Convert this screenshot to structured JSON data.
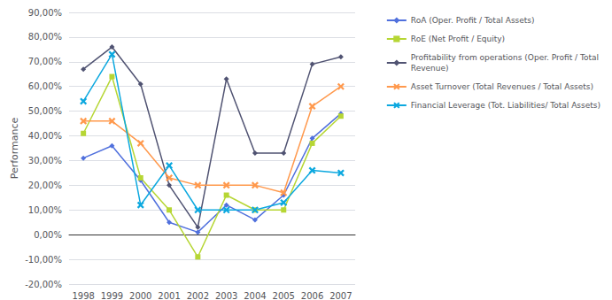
{
  "chart_data": {
    "type": "line",
    "y_label": "Performance",
    "categories": [
      "1998",
      "1999",
      "2000",
      "2001",
      "2002",
      "2003",
      "2004",
      "2005",
      "2006",
      "2007"
    ],
    "series": [
      {
        "name": "RoA (Oper. Profit / Total Assets)",
        "marker": "diamond",
        "values": [
          0.31,
          0.36,
          0.22,
          0.05,
          0.01,
          0.12,
          0.06,
          0.16,
          0.39,
          0.49
        ]
      },
      {
        "name": "RoE (Net Profit / Equity)",
        "marker": "square",
        "values": [
          0.41,
          0.64,
          0.23,
          0.1,
          -0.09,
          0.16,
          0.1,
          0.1,
          0.37,
          0.48
        ]
      },
      {
        "name": "Profitability from operations (Oper. Profit / Total\nRevenue)",
        "marker": "diamond",
        "values": [
          0.67,
          0.76,
          0.61,
          0.2,
          0.03,
          0.63,
          0.33,
          0.33,
          0.69,
          0.72
        ]
      },
      {
        "name": "Asset Turnover (Total Revenues / Total Assets)",
        "marker": "x",
        "values": [
          0.46,
          0.46,
          0.37,
          0.23,
          0.2,
          0.2,
          0.2,
          0.17,
          0.52,
          0.6
        ]
      },
      {
        "name": "Financial Leverage (Tot. Liabilities/ Total Assets)",
        "marker": "x",
        "values": [
          0.54,
          0.73,
          0.12,
          0.28,
          0.1,
          0.1,
          0.1,
          0.13,
          0.26,
          0.25
        ]
      }
    ],
    "ylim": [
      -0.2,
      0.9
    ],
    "yticks": [
      {
        "value": -0.2,
        "label": "-20,00%"
      },
      {
        "value": -0.1,
        "label": "-10,00%"
      },
      {
        "value": 0.0,
        "label": "0,00%"
      },
      {
        "value": 0.1,
        "label": "10,00%"
      },
      {
        "value": 0.2,
        "label": "20,00%"
      },
      {
        "value": 0.3,
        "label": "30,00%"
      },
      {
        "value": 0.4,
        "label": "40,00%"
      },
      {
        "value": 0.5,
        "label": "50,00%"
      },
      {
        "value": 0.6,
        "label": "60,00%"
      },
      {
        "value": 0.7,
        "label": "70,00%"
      },
      {
        "value": 0.8,
        "label": "80,00%"
      },
      {
        "value": 0.9,
        "label": "90,00%"
      }
    ],
    "grid": true,
    "legend": "right"
  }
}
